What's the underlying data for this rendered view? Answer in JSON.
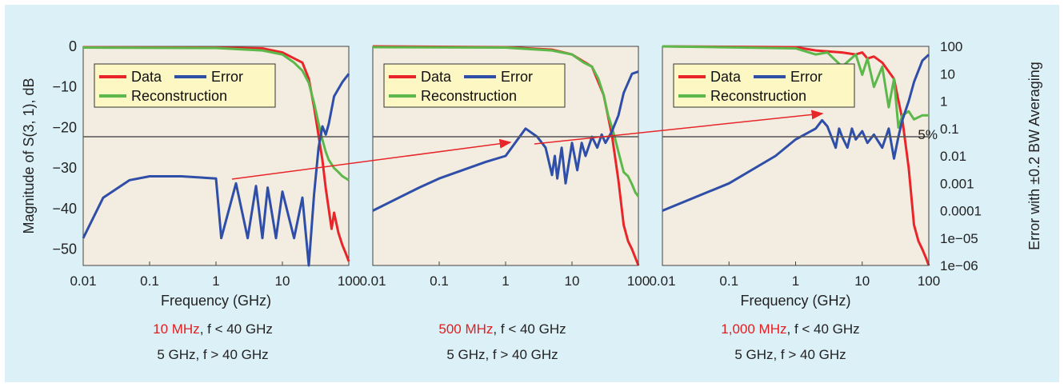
{
  "colors": {
    "data": "#e8262a",
    "error": "#2f4ea8",
    "reconstruction": "#5cb84a",
    "background": "#dcf0f8",
    "plot_bg": "#f2ede0",
    "legend_bg": "#fdf7c4",
    "caption_red": "#e02020"
  },
  "left_axis": {
    "label": "Magnitude of S(3, 1), dB",
    "ticks": [
      "0",
      "−10",
      "−20",
      "−30",
      "−40",
      "−50"
    ]
  },
  "right_axis": {
    "label": "Error with ±0.2 BW Averaging",
    "ticks": [
      "100",
      "10",
      "1",
      "0.1",
      "0.01",
      "0.001",
      "0.0001",
      "1e−05",
      "1e−06"
    ],
    "threshold_label": "5%"
  },
  "x_axis": {
    "label": "Frequency (GHz)",
    "ticks": [
      "0.01",
      "0.1",
      "1",
      "10",
      "100"
    ]
  },
  "legend": {
    "data": "Data",
    "error": "Error",
    "reconstruction": "Reconstruction"
  },
  "captions": [
    {
      "red": "10 MHz",
      "rest": ", f < 40 GHz",
      "line2": "5 GHz, f > 40 GHz"
    },
    {
      "red": "500 MHz",
      "rest": ", f < 40 GHz",
      "line2": "5 GHz, f > 40 GHz"
    },
    {
      "red": "1,000 MHz",
      "rest": ", f < 40 GHz",
      "line2": "5 GHz, f > 40 GHz"
    }
  ],
  "chart_data": [
    {
      "type": "line",
      "xscale": "log",
      "xlim": [
        0.01,
        100
      ],
      "ylim": [
        -54,
        0
      ],
      "y2lim": [
        1e-06,
        100
      ],
      "y2scale": "log",
      "threshold_error": 0.05,
      "series": [
        {
          "name": "Data",
          "axis": "left",
          "x": [
            0.01,
            1,
            5,
            10,
            20,
            25,
            30,
            35,
            40,
            45,
            55,
            60,
            70,
            80,
            90,
            100
          ],
          "y": [
            -0.2,
            -0.3,
            -0.5,
            -1.5,
            -4,
            -8,
            -15,
            -22,
            -28,
            -35,
            -45,
            -41,
            -46,
            -49,
            -51,
            -53
          ]
        },
        {
          "name": "Reconstruction",
          "axis": "left",
          "x": [
            0.01,
            1,
            5,
            10,
            15,
            20,
            25,
            30,
            35,
            40,
            45,
            50,
            60,
            70,
            80,
            100
          ],
          "y": [
            -0.3,
            -0.4,
            -1,
            -2,
            -4,
            -6,
            -9,
            -14,
            -19,
            -23,
            -26,
            -28,
            -30,
            -31,
            -32,
            -33
          ]
        },
        {
          "name": "Error",
          "axis": "right",
          "x": [
            0.01,
            0.02,
            0.05,
            0.1,
            0.3,
            1,
            1.2,
            2,
            3,
            4,
            5,
            6,
            8,
            10,
            15,
            20,
            25,
            30,
            35,
            40,
            45,
            50,
            60,
            80,
            100
          ],
          "y": [
            1e-05,
            0.0003,
            0.0013,
            0.0018,
            0.0018,
            0.0015,
            1e-05,
            0.001,
            1e-05,
            0.0008,
            1e-05,
            0.0007,
            1e-05,
            0.0005,
            1e-05,
            0.0003,
            1e-06,
            0.0004,
            0.02,
            0.12,
            0.06,
            0.15,
            1.5,
            5,
            10
          ]
        }
      ]
    },
    {
      "type": "line",
      "xscale": "log",
      "xlim": [
        0.01,
        100
      ],
      "ylim": [
        -54,
        0
      ],
      "y2lim": [
        1e-06,
        100
      ],
      "y2scale": "log",
      "threshold_error": 0.05,
      "series": [
        {
          "name": "Data",
          "axis": "left",
          "x": [
            0.01,
            1,
            5,
            10,
            20,
            30,
            40,
            50,
            60,
            70,
            80,
            100
          ],
          "y": [
            0,
            -0.2,
            -0.8,
            -2,
            -5,
            -12,
            -22,
            -33,
            -44,
            -48,
            -50,
            -54
          ]
        },
        {
          "name": "Reconstruction",
          "axis": "left",
          "x": [
            0.01,
            1,
            5,
            10,
            15,
            20,
            25,
            30,
            35,
            40,
            45,
            50,
            60,
            70,
            80,
            90,
            100
          ],
          "y": [
            -0.2,
            -0.3,
            -1,
            -2,
            -4,
            -5,
            -8,
            -12,
            -17,
            -20,
            -23,
            -26,
            -31,
            -32,
            -34,
            -36,
            -37
          ]
        },
        {
          "name": "Error",
          "axis": "right",
          "x": [
            0.01,
            0.05,
            0.1,
            0.5,
            1,
            2,
            3,
            4,
            5,
            5.5,
            6,
            7,
            8,
            10,
            12,
            14,
            16,
            20,
            24,
            28,
            32,
            40,
            50,
            60,
            80,
            100
          ],
          "y": [
            0.0001,
            0.0007,
            0.0015,
            0.006,
            0.01,
            0.1,
            0.05,
            0.02,
            0.002,
            0.01,
            0.0015,
            0.02,
            0.001,
            0.03,
            0.003,
            0.03,
            0.01,
            0.05,
            0.02,
            0.06,
            0.03,
            0.08,
            0.3,
            2,
            10,
            12
          ]
        }
      ]
    },
    {
      "type": "line",
      "xscale": "log",
      "xlim": [
        0.01,
        100
      ],
      "ylim": [
        -54,
        0
      ],
      "y2lim": [
        1e-06,
        100
      ],
      "y2scale": "log",
      "threshold_error": 0.05,
      "series": [
        {
          "name": "Data",
          "axis": "left",
          "x": [
            0.01,
            1,
            2,
            5,
            8,
            10,
            12,
            15,
            20,
            30,
            40,
            50,
            60,
            70,
            80,
            90,
            100
          ],
          "y": [
            0,
            -0.2,
            -1,
            -1.5,
            -2,
            -1.5,
            -3,
            -2.5,
            -4,
            -8,
            -18,
            -30,
            -44,
            -48,
            -50,
            -52,
            -54
          ]
        },
        {
          "name": "Reconstruction",
          "axis": "left",
          "x": [
            0.01,
            1,
            2,
            3,
            5,
            8,
            10,
            12,
            15,
            20,
            25,
            30,
            35,
            40,
            50,
            60,
            80,
            100
          ],
          "y": [
            0,
            -0.5,
            -2,
            -1.5,
            -5,
            -2,
            -7,
            -3,
            -10,
            -5,
            -15,
            -8,
            -20,
            -17,
            -16,
            -18,
            -17,
            -17
          ]
        },
        {
          "name": "Error",
          "axis": "right",
          "x": [
            0.01,
            0.1,
            0.5,
            1,
            2,
            2.5,
            3,
            4,
            4.5,
            5,
            6,
            7,
            8,
            10,
            12,
            15,
            20,
            25,
            30,
            35,
            40,
            50,
            60,
            80,
            100
          ],
          "y": [
            0.0001,
            0.001,
            0.01,
            0.04,
            0.1,
            0.2,
            0.12,
            0.02,
            0.1,
            0.05,
            0.02,
            0.1,
            0.04,
            0.08,
            0.03,
            0.06,
            0.02,
            0.1,
            0.008,
            0.05,
            0.2,
            1,
            5,
            30,
            50
          ]
        }
      ]
    }
  ]
}
